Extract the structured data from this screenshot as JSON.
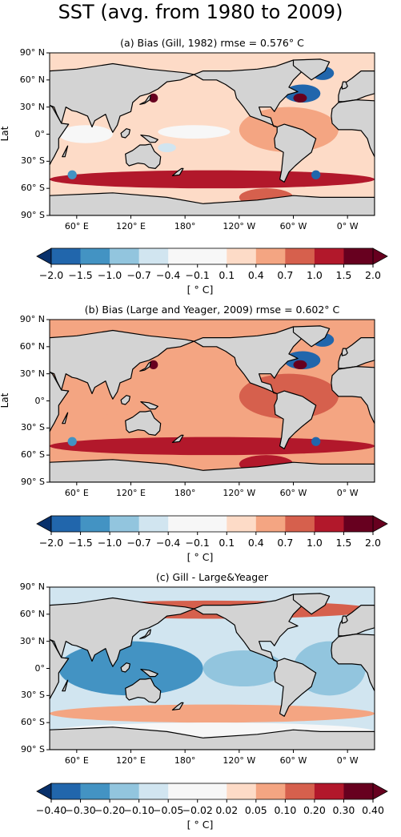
{
  "figure_title": "SST (avg. from 1980 to 2009)",
  "ylabel_text": "Lat",
  "lat_ticks": [
    "90° N",
    "60° N",
    "30° N",
    "0°",
    "30° S",
    "60° S",
    "90° S"
  ],
  "lon_ticks": [
    "60° E",
    "120° E",
    "180°",
    "120° W",
    "60° W",
    "0° W"
  ],
  "colors": {
    "land": "#d3d3d3",
    "coast": "#000000",
    "bias_palette": [
      "#08306b",
      "#2166ac",
      "#4393c3",
      "#92c5de",
      "#d1e5f0",
      "#f7f7f7",
      "#f7f7f7",
      "#fddbc7",
      "#f4a582",
      "#d6604d",
      "#b2182b",
      "#67001f"
    ]
  },
  "chart_data": [
    {
      "type": "heatmap",
      "title": "(a) Bias (Gill, 1982) rmse = 0.576° C",
      "ylabel": "Lat",
      "xlim": [
        30,
        390
      ],
      "ylim": [
        -90,
        90
      ],
      "colorbar": {
        "ticks": [
          "−2.0",
          "−1.5",
          "−1.0",
          "−0.7",
          "−0.4",
          "−0.1",
          "0.1",
          "0.4",
          "0.7",
          "1.0",
          "1.5",
          "2.0"
        ],
        "label": "[ ° C]",
        "extend": "both"
      },
      "ocean_level": 0.1,
      "features": [
        {
          "lon": [
            240,
            350
          ],
          "lat": [
            -20,
            30
          ],
          "level": 0.4
        },
        {
          "lon": [
            150,
            230
          ],
          "lat": [
            -5,
            10
          ],
          "level": -0.4
        },
        {
          "lon": [
            40,
            100
          ],
          "lat": [
            -10,
            10
          ],
          "level": -0.4
        },
        {
          "lon": [
            290,
            330
          ],
          "lat": [
            35,
            55
          ],
          "level": -2.0
        },
        {
          "lon": [
            320,
            345
          ],
          "lat": [
            60,
            75
          ],
          "level": -2.0
        },
        {
          "lon": [
            140,
            150
          ],
          "lat": [
            35,
            45
          ],
          "level": 2.0
        },
        {
          "lon": [
            300,
            315
          ],
          "lat": [
            35,
            45
          ],
          "level": 2.0
        },
        {
          "lon": [
            30,
            390
          ],
          "lat": [
            -60,
            -40
          ],
          "level": 1.0
        },
        {
          "lon": [
            50,
            60
          ],
          "lat": [
            -50,
            -40
          ],
          "level": -1.5
        },
        {
          "lon": [
            320,
            330
          ],
          "lat": [
            -50,
            -40
          ],
          "level": -2.0
        },
        {
          "lon": [
            240,
            300
          ],
          "lat": [
            -80,
            -60
          ],
          "level": 0.7
        },
        {
          "lon": [
            150,
            170
          ],
          "lat": [
            -20,
            -10
          ],
          "level": -0.7
        }
      ]
    },
    {
      "type": "heatmap",
      "title": "(b) Bias (Large and Yeager, 2009) rmse = 0.602° C",
      "ylabel": "Lat",
      "xlim": [
        30,
        390
      ],
      "ylim": [
        -90,
        90
      ],
      "colorbar": {
        "ticks": [
          "−2.0",
          "−1.5",
          "−1.0",
          "−0.7",
          "−0.4",
          "−0.1",
          "0.1",
          "0.4",
          "0.7",
          "1.0",
          "1.5",
          "2.0"
        ],
        "label": "[ ° C]",
        "extend": "both"
      },
      "ocean_level": 0.4,
      "features": [
        {
          "lon": [
            240,
            350
          ],
          "lat": [
            -20,
            30
          ],
          "level": 0.7
        },
        {
          "lon": [
            30,
            390
          ],
          "lat": [
            -60,
            -40
          ],
          "level": 1.0
        },
        {
          "lon": [
            290,
            330
          ],
          "lat": [
            35,
            55
          ],
          "level": -2.0
        },
        {
          "lon": [
            320,
            345
          ],
          "lat": [
            60,
            75
          ],
          "level": -2.0
        },
        {
          "lon": [
            140,
            150
          ],
          "lat": [
            35,
            45
          ],
          "level": 2.0
        },
        {
          "lon": [
            300,
            315
          ],
          "lat": [
            35,
            45
          ],
          "level": 2.0
        },
        {
          "lon": [
            50,
            60
          ],
          "lat": [
            -50,
            -40
          ],
          "level": -1.5
        },
        {
          "lon": [
            320,
            330
          ],
          "lat": [
            -50,
            -40
          ],
          "level": -2.0
        },
        {
          "lon": [
            240,
            300
          ],
          "lat": [
            -80,
            -60
          ],
          "level": 1.0
        },
        {
          "lon": [
            90,
            150
          ],
          "lat": [
            -30,
            -10
          ],
          "level": 0.4
        }
      ]
    },
    {
      "type": "heatmap",
      "title": "(c) Gill - Large&Yeager",
      "ylabel": "",
      "xlim": [
        30,
        390
      ],
      "ylim": [
        -90,
        90
      ],
      "colorbar": {
        "ticks": [
          "−0.40",
          "−0.30",
          "−0.20",
          "−0.10",
          "−0.05",
          "−0.02",
          "0.02",
          "0.05",
          "0.10",
          "0.20",
          "0.30",
          "0.40"
        ],
        "label": "[ ° C]",
        "extend": "both"
      },
      "ocean_level": -0.1,
      "features": [
        {
          "lon": [
            40,
            200
          ],
          "lat": [
            -30,
            30
          ],
          "level": -0.3
        },
        {
          "lon": [
            200,
            290
          ],
          "lat": [
            -20,
            20
          ],
          "level": -0.2
        },
        {
          "lon": [
            300,
            380
          ],
          "lat": [
            -30,
            30
          ],
          "level": -0.2
        },
        {
          "lon": [
            30,
            390
          ],
          "lat": [
            -60,
            -40
          ],
          "level": 0.05
        },
        {
          "lon": [
            30,
            390
          ],
          "lat": [
            55,
            75
          ],
          "level": 0.1
        },
        {
          "lon": [
            30,
            390
          ],
          "lat": [
            -80,
            -60
          ],
          "level": 0.0
        }
      ]
    }
  ]
}
